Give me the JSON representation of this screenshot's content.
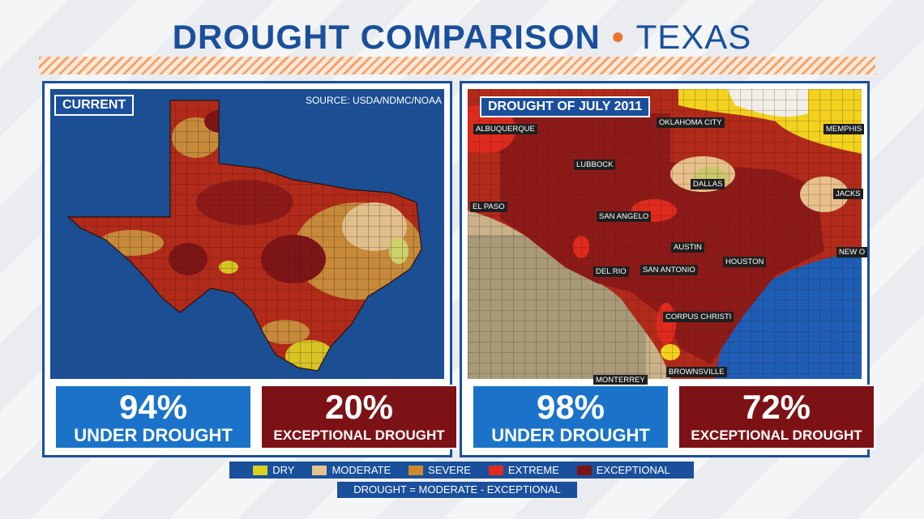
{
  "header": {
    "title": "DROUGHT COMPARISON",
    "subtitle": "TEXAS"
  },
  "colors": {
    "brand_blue": "#1a4f9c",
    "accent_orange": "#e8772e",
    "ocean": "#1b4e93"
  },
  "left_panel": {
    "tag": "CURRENT",
    "source": "SOURCE: USDA/NDMC/NOAA",
    "stats": [
      {
        "percent": "94%",
        "label": "UNDER DROUGHT"
      },
      {
        "percent": "20%",
        "label": "EXCEPTIONAL DROUGHT"
      }
    ]
  },
  "right_panel": {
    "tag": "DROUGHT OF JULY 2011",
    "cities": [
      "ALBUQUERQUE",
      "OKLAHOMA CITY",
      "MEMPHIS",
      "LUBBOCK",
      "DALLAS",
      "JACKSON",
      "EL PASO",
      "SAN ANGELO",
      "AUSTIN",
      "NEW ORLEANS",
      "DEL RIO",
      "SAN ANTONIO",
      "HOUSTON",
      "CORPUS CHRISTI",
      "BROWNSVILLE",
      "MONTERREY"
    ],
    "city_labels": {
      "albuquerque": "ALBUQUERQUE",
      "oklahoma_city": "OKLAHOMA CITY",
      "memphis": "MEMPHIS",
      "lubbock": "LUBBOCK",
      "dallas": "DALLAS",
      "jackson": "JACKS",
      "el_paso": "EL PASO",
      "san_angelo": "SAN ANGELO",
      "austin": "AUSTIN",
      "new_orleans": "NEW O",
      "del_rio": "DEL RIO",
      "san_antonio": "SAN ANTONIO",
      "houston": "HOUSTON",
      "corpus_christi": "CORPUS CHRISTI",
      "brownsville": "BROWNSVILLE",
      "monterrey": "MONTERREY"
    },
    "stats": [
      {
        "percent": "98%",
        "label": "UNDER DROUGHT"
      },
      {
        "percent": "72%",
        "label": "EXCEPTIONAL DROUGHT"
      }
    ]
  },
  "legend": {
    "items": [
      {
        "label": "DRY",
        "color": "#d7d21f"
      },
      {
        "label": "MODERATE",
        "color": "#e6c38f"
      },
      {
        "label": "SEVERE",
        "color": "#cc8a2c"
      },
      {
        "label": "EXTREME",
        "color": "#e32a1e"
      },
      {
        "label": "EXCEPTIONAL",
        "color": "#7a1416"
      }
    ],
    "note": "DROUGHT = MODERATE - EXCEPTIONAL"
  }
}
